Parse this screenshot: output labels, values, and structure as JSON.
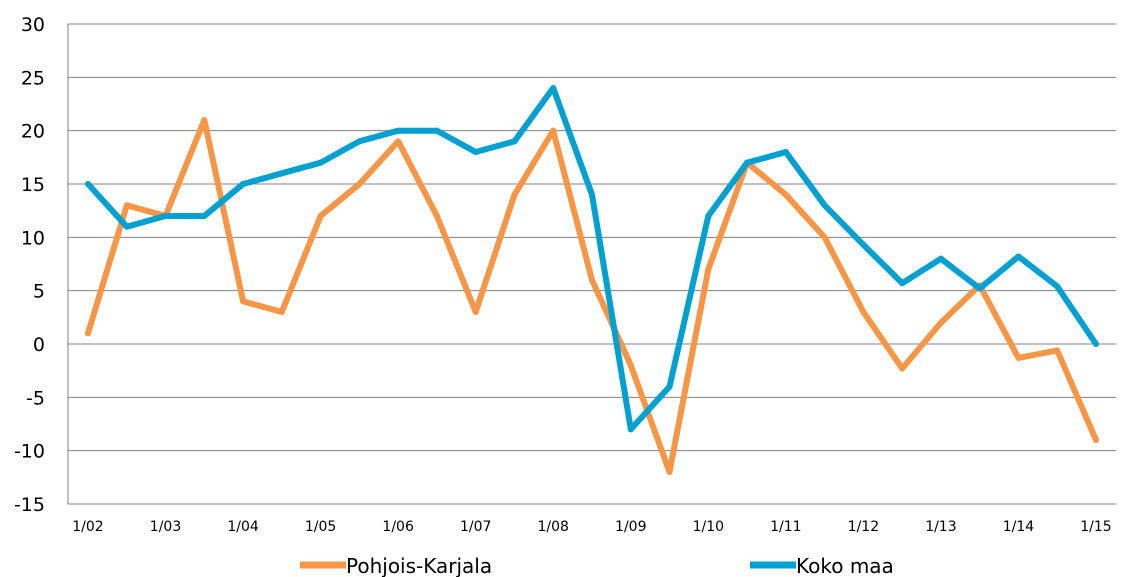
{
  "chart_data": {
    "type": "line",
    "x": [
      "1/02",
      "7/02",
      "1/03",
      "7/03",
      "1/04",
      "7/04",
      "1/05",
      "7/05",
      "1/06",
      "7/06",
      "1/07",
      "7/07",
      "1/08",
      "7/08",
      "1/09",
      "7/09",
      "1/10",
      "7/10",
      "1/11",
      "7/11",
      "1/12",
      "7/12",
      "1/13",
      "7/13",
      "1/14",
      "7/14",
      "1/15"
    ],
    "x_tick_labels": [
      "1/02",
      "1/03",
      "1/04",
      "1/05",
      "1/06",
      "1/07",
      "1/08",
      "1/09",
      "1/10",
      "1/11",
      "1/12",
      "1/13",
      "1/14",
      "1/15"
    ],
    "y_ticks": [
      30,
      25,
      20,
      15,
      10,
      5,
      0,
      -5,
      -10,
      -15
    ],
    "ylim": [
      -15,
      30
    ],
    "grid": "horizontal",
    "legend_position": "bottom",
    "series": [
      {
        "name": "Pohjois-Karjala",
        "color": "#F79646",
        "values": [
          1,
          13,
          12,
          21,
          4,
          3,
          12,
          15,
          19,
          12,
          3,
          14,
          20,
          6,
          -2,
          -12,
          7,
          17,
          14,
          10,
          3,
          -2.3,
          2,
          5.5,
          -1.3,
          -0.6,
          -9
        ]
      },
      {
        "name": "Koko maa",
        "color": "#00A0D1",
        "values": [
          15,
          11,
          12,
          12,
          15,
          16,
          17,
          19,
          20,
          20,
          18,
          19,
          24,
          14,
          -8,
          -4,
          12,
          17,
          18,
          13,
          9.3,
          5.7,
          8,
          5.2,
          8.2,
          5.4,
          0
        ]
      }
    ]
  }
}
